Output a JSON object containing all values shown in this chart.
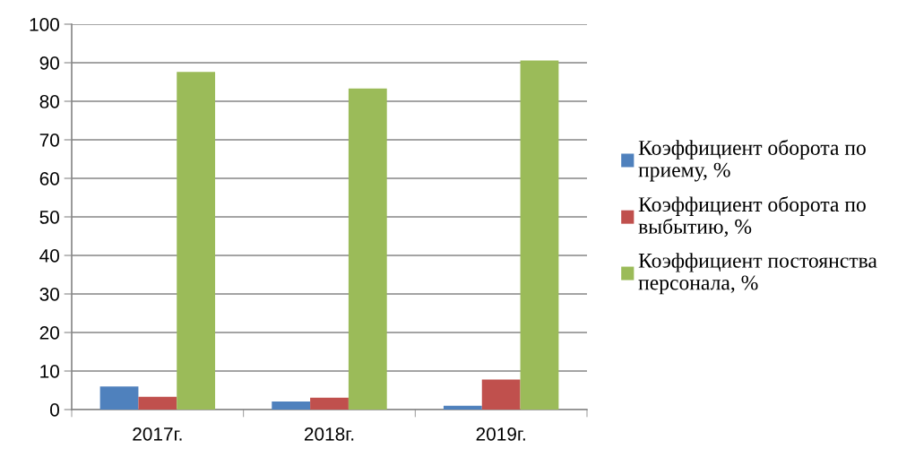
{
  "chart_data": {
    "type": "bar",
    "categories": [
      "2017г.",
      "2018г.",
      "2019г."
    ],
    "series": [
      {
        "name": "Коэффициент оборота по приему, %",
        "color": "#4f81bd",
        "values": [
          6.0,
          2.1,
          1.0
        ]
      },
      {
        "name": "Коэффициент оборота по выбытию, %",
        "color": "#c0504d",
        "values": [
          3.3,
          3.1,
          7.8
        ]
      },
      {
        "name": "Коэффициент постоянства персонала, %",
        "color": "#9bbb59",
        "values": [
          87.6,
          83.3,
          90.6
        ]
      }
    ],
    "ylim": [
      0,
      100
    ],
    "yticks": [
      0,
      10,
      20,
      30,
      40,
      50,
      60,
      70,
      80,
      90,
      100
    ],
    "grid": "y",
    "legend": "right"
  }
}
